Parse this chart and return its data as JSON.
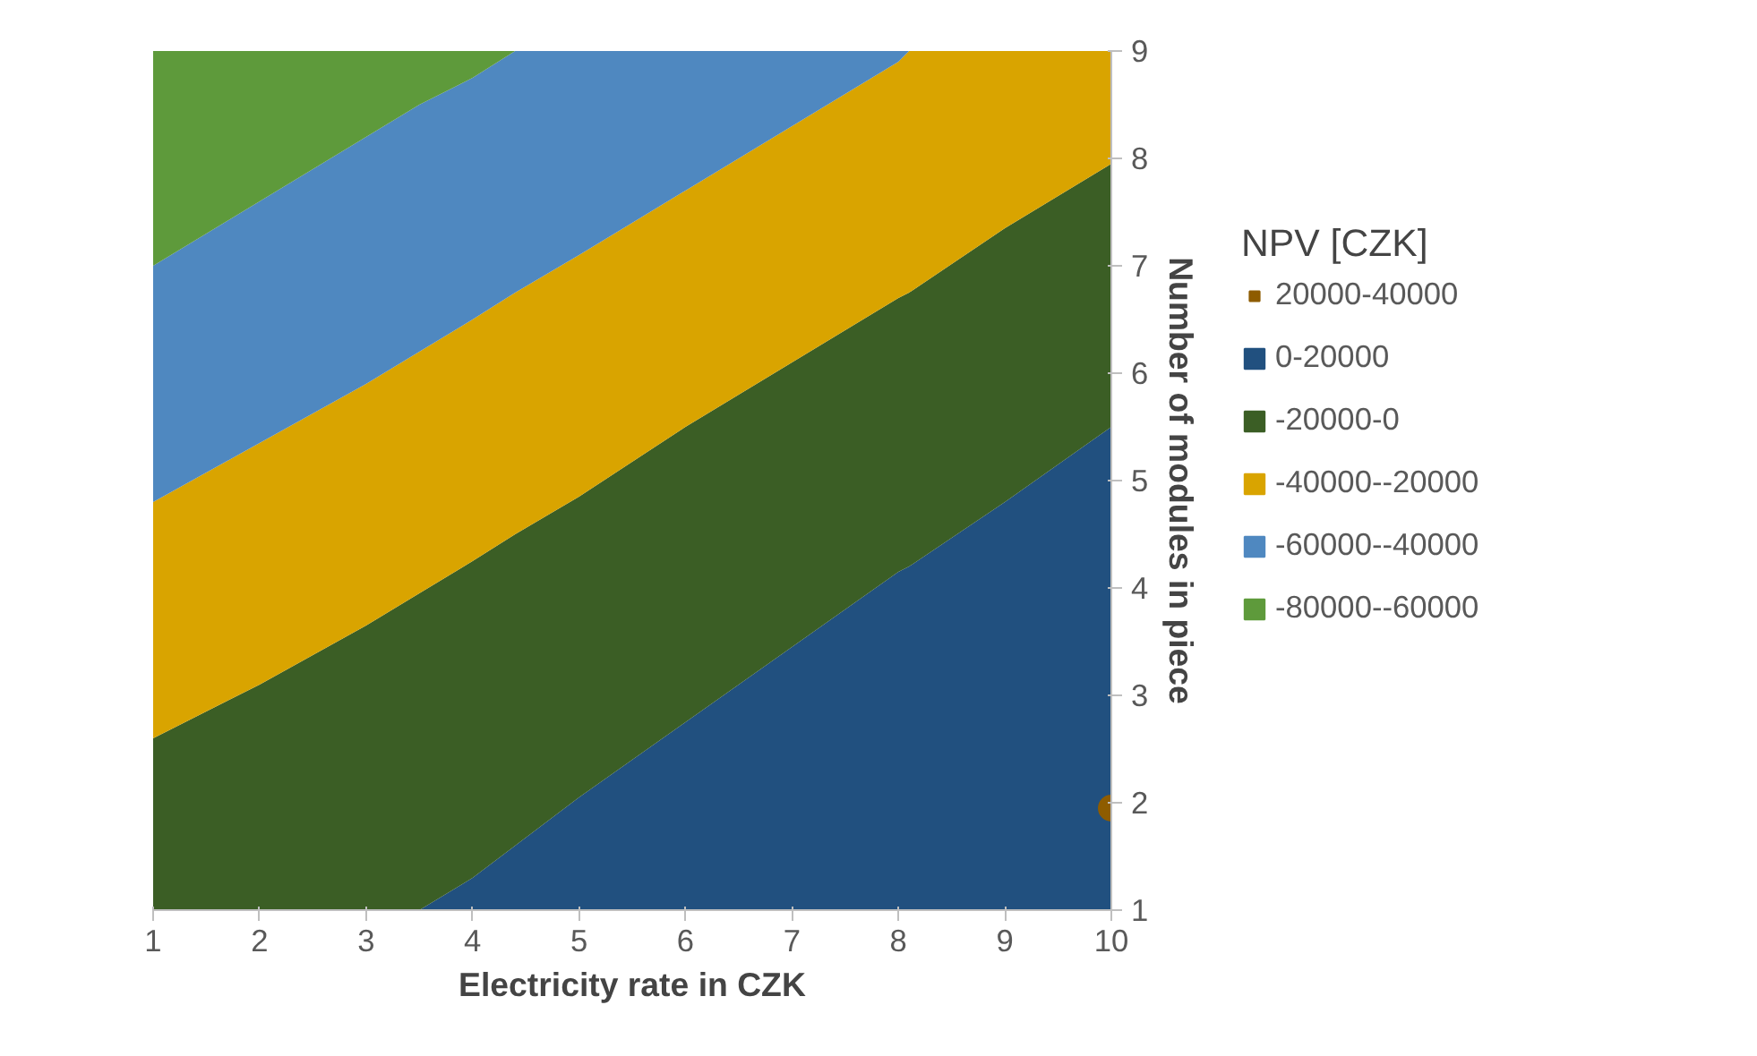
{
  "chart_data": {
    "type": "area",
    "xlabel": "Electricity rate in CZK",
    "ylabel": "Number of modules in piece",
    "legend_title": "NPV [CZK]",
    "legend": "right",
    "xlim": [
      1,
      10
    ],
    "ylim": [
      1,
      9
    ],
    "xticks": [
      1,
      2,
      3,
      4,
      5,
      6,
      7,
      8,
      9,
      10
    ],
    "yticks": [
      1,
      2,
      3,
      4,
      5,
      6,
      7,
      8,
      9
    ],
    "x": [
      1,
      2,
      3,
      3.5,
      4,
      4.4,
      5,
      6,
      7,
      8,
      8.1,
      9,
      10
    ],
    "series": [
      {
        "name": "20000-40000",
        "type": "scatter",
        "marker": "circle",
        "color": "#8e5c00",
        "x": [
          10
        ],
        "values": [
          1.95
        ]
      },
      {
        "name": "0-20000",
        "color": "#21507f",
        "values": [
          1,
          1,
          1,
          1,
          1.3,
          1.6,
          2.05,
          2.75,
          3.45,
          4.15,
          4.2,
          4.8,
          5.5
        ]
      },
      {
        "name": "-20000-0",
        "color": "#3b5e25",
        "values": [
          2.6,
          3.1,
          3.65,
          3.95,
          4.25,
          4.5,
          4.85,
          5.5,
          6.1,
          6.7,
          6.75,
          7.35,
          7.95
        ]
      },
      {
        "name": "-40000--20000",
        "color": "#d9a400",
        "values": [
          4.8,
          5.35,
          5.9,
          6.2,
          6.5,
          6.75,
          7.1,
          7.7,
          8.3,
          8.9,
          9,
          9,
          9
        ]
      },
      {
        "name": "-60000--40000",
        "color": "#4f88c0",
        "values": [
          7,
          7.6,
          8.2,
          8.5,
          8.75,
          9,
          9,
          9,
          9,
          9,
          9,
          9,
          9
        ]
      },
      {
        "name": "-80000--60000",
        "color": "#5e9a3b",
        "values": [
          9,
          9,
          9,
          9,
          9,
          9,
          9,
          9,
          9,
          9,
          9,
          9,
          9
        ]
      }
    ]
  }
}
